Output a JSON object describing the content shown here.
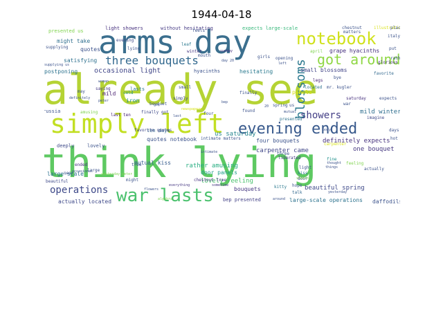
{
  "title": "1944-04-18",
  "words": [
    {
      "text": "already see",
      "size": 60,
      "color": "#b5d334"
    },
    {
      "text": "think lying",
      "size": 60,
      "color": "#5ec962"
    },
    {
      "text": "arms day",
      "size": 46,
      "color": "#3b6f8e"
    },
    {
      "text": "simply left",
      "size": 38,
      "color": "#c2df23"
    },
    {
      "text": "war lasts",
      "size": 26,
      "color": "#4ac16d"
    },
    {
      "text": "notebook",
      "size": 24,
      "color": "#d0e11c"
    },
    {
      "text": "evening ended",
      "size": 22,
      "color": "#38598c"
    },
    {
      "text": "got around",
      "size": 20,
      "color": "#8fd744"
    },
    {
      "text": "blossoms",
      "size": 18,
      "color": "#2a788e"
    },
    {
      "text": "three bouquets",
      "size": 16,
      "color": "#31688e"
    },
    {
      "text": "showers",
      "size": 14,
      "color": "#433e85"
    },
    {
      "text": "operations",
      "size": 14,
      "color": "#3e4989"
    },
    {
      "text": "occasional light",
      "size": 10,
      "color": "#404688"
    },
    {
      "text": "rather amusing",
      "size": 9,
      "color": "#27ad81"
    },
    {
      "text": "lovely feeling",
      "size": 9,
      "color": "#4ac16d"
    },
    {
      "text": "beautiful spring",
      "size": 9,
      "color": "#3e4989"
    },
    {
      "text": "carpenter came",
      "size": 9,
      "color": "#404688"
    },
    {
      "text": "definitely expects",
      "size": 9,
      "color": "#46327e"
    },
    {
      "text": "one bouquet",
      "size": 9,
      "color": "#453781"
    },
    {
      "text": "mild winter",
      "size": 9,
      "color": "#2e6e8e"
    },
    {
      "text": "mutual kiss",
      "size": 8,
      "color": "#365c8d"
    },
    {
      "text": "us saturday",
      "size": 9,
      "color": "#25848e"
    },
    {
      "text": "four bouquets",
      "size": 8,
      "color": "#3b528b"
    },
    {
      "text": "door panels",
      "size": 8,
      "color": "#1f9e89"
    },
    {
      "text": "quotes notebook",
      "size": 8,
      "color": "#3b528b"
    },
    {
      "text": "large-scale operations",
      "size": 8,
      "color": "#2c728e"
    },
    {
      "text": "actually located",
      "size": 8,
      "color": "#3e4989"
    },
    {
      "text": "daffodils",
      "size": 8,
      "color": "#3b528b"
    },
    {
      "text": "bep presented",
      "size": 7,
      "color": "#424086"
    },
    {
      "text": "bouquets",
      "size": 8,
      "color": "#453781"
    },
    {
      "text": "small blossoms",
      "size": 8,
      "color": "#414487"
    },
    {
      "text": "grape hyacinths",
      "size": 8,
      "color": "#46307e"
    },
    {
      "text": "satisfying",
      "size": 8,
      "color": "#2d708e"
    },
    {
      "text": "postponing",
      "size": 8,
      "color": "#2c728e"
    },
    {
      "text": "might take",
      "size": 8,
      "color": "#2e6e8e"
    },
    {
      "text": "hesitating",
      "size": 8,
      "color": "#29798e"
    },
    {
      "text": "hyacinths",
      "size": 7,
      "color": "#3b528b"
    },
    {
      "text": "quotes",
      "size": 8,
      "color": "#3b528b"
    },
    {
      "text": "large-scale",
      "size": 8,
      "color": "#2c728e"
    },
    {
      "text": "presented us",
      "size": 7,
      "color": "#7fd34e"
    },
    {
      "text": "light showers",
      "size": 7,
      "color": "#46307e"
    },
    {
      "text": "without hesitating",
      "size": 7,
      "color": "#443983"
    },
    {
      "text": "expects large-scale",
      "size": 7,
      "color": "#35b779"
    },
    {
      "text": "panels",
      "size": 8,
      "color": "#d8e219"
    },
    {
      "text": "ten days",
      "size": 7,
      "color": "#31688e"
    },
    {
      "text": "iron",
      "size": 8,
      "color": "#21918c"
    },
    {
      "text": "finally got",
      "size": 6,
      "color": "#3e4989"
    },
    {
      "text": "last ten",
      "size": 6,
      "color": "#482173"
    },
    {
      "text": "mild",
      "size": 8,
      "color": "#481f70"
    },
    {
      "text": "chestnut tree",
      "size": 6,
      "color": "#46337f"
    },
    {
      "text": "intimate matters",
      "size": 6,
      "color": "#3b528b"
    },
    {
      "text": "favorite quotes",
      "size": 6,
      "color": "#3f4788"
    },
    {
      "text": "lasts",
      "size": 7,
      "color": "#2a788e"
    },
    {
      "text": "lovely",
      "size": 7,
      "color": "#3b528b"
    },
    {
      "text": "deeply",
      "size": 7,
      "color": "#3e4a89"
    },
    {
      "text": "russia",
      "size": 7,
      "color": "#3b528b"
    },
    {
      "text": "amusing",
      "size": 6,
      "color": "#7fd34e"
    },
    {
      "text": "saying",
      "size": 6,
      "color": "#453781"
    },
    {
      "text": "simply",
      "size": 6,
      "color": "#3e4989"
    },
    {
      "text": "small",
      "size": 6,
      "color": "#3b528b"
    },
    {
      "text": "located",
      "size": 6,
      "color": "#2c728e"
    },
    {
      "text": "legs",
      "size": 6,
      "color": "#482475"
    },
    {
      "text": "favorite",
      "size": 6,
      "color": "#31688e"
    },
    {
      "text": "saturday",
      "size": 6,
      "color": "#46307e"
    },
    {
      "text": "imagine",
      "size": 6,
      "color": "#3e4989"
    },
    {
      "text": "presented",
      "size": 6,
      "color": "#2c728e"
    },
    {
      "text": "mutual",
      "size": 5,
      "color": "#3b528b"
    },
    {
      "text": "light",
      "size": 6,
      "color": "#3b528b"
    },
    {
      "text": "kiss",
      "size": 6,
      "color": "#2a788e"
    },
    {
      "text": "door",
      "size": 6,
      "color": "#3e4989"
    },
    {
      "text": "fine",
      "size": 6,
      "color": "#21918c"
    },
    {
      "text": "hope",
      "size": 6,
      "color": "#3b528b"
    },
    {
      "text": "talk",
      "size": 6,
      "color": "#31688e"
    },
    {
      "text": "kitty",
      "size": 6,
      "color": "#2a788e"
    },
    {
      "text": "sometime",
      "size": 5,
      "color": "#453781"
    },
    {
      "text": "tree",
      "size": 6,
      "color": "#3b528b"
    },
    {
      "text": "beautiful",
      "size": 6,
      "color": "#3e4989"
    },
    {
      "text": "near",
      "size": 6,
      "color": "#3b528b"
    },
    {
      "text": "ended",
      "size": 6,
      "color": "#46307e"
    },
    {
      "text": "bouquet",
      "size": 6,
      "color": "#3b528b"
    },
    {
      "text": "cold",
      "size": 6,
      "color": "#21918c"
    },
    {
      "text": "woman",
      "size": 5,
      "color": "#3b528b"
    },
    {
      "text": "may",
      "size": 6,
      "color": "#3b528b"
    },
    {
      "text": "feels",
      "size": 6,
      "color": "#3b528b"
    },
    {
      "text": "mouth",
      "size": 6,
      "color": "#3b528b"
    },
    {
      "text": "leaf",
      "size": 6,
      "color": "#2a788e"
    },
    {
      "text": "winter",
      "size": 6,
      "color": "#453781"
    },
    {
      "text": "girls",
      "size": 6,
      "color": "#3b528b"
    },
    {
      "text": "evening",
      "size": 6,
      "color": "#3e4989"
    },
    {
      "text": "lying",
      "size": 6,
      "color": "#3b528b"
    },
    {
      "text": "sunday",
      "size": 5,
      "color": "#46307e"
    },
    {
      "text": "april",
      "size": 6,
      "color": "#7fd34e"
    },
    {
      "text": "opening",
      "size": 6,
      "color": "#3b528b"
    },
    {
      "text": "bye",
      "size": 6,
      "color": "#3b528b"
    },
    {
      "text": "glorious",
      "size": 6,
      "color": "#46307e"
    },
    {
      "text": "chestnut",
      "size": 6,
      "color": "#3b528b"
    },
    {
      "text": "illustrations",
      "size": 6,
      "color": "#d8e219"
    },
    {
      "text": "place",
      "size": 6,
      "color": "#3b528b"
    },
    {
      "text": "matters",
      "size": 6,
      "color": "#3b528b"
    },
    {
      "text": "italy",
      "size": 6,
      "color": "#3b528b"
    },
    {
      "text": "put",
      "size": 6,
      "color": "#3b528b"
    },
    {
      "text": "rather",
      "size": 6,
      "color": "#3b528b"
    },
    {
      "text": "expects",
      "size": 6,
      "color": "#3b528b"
    },
    {
      "text": "days",
      "size": 6,
      "color": "#3b528b"
    },
    {
      "text": "hot",
      "size": 6,
      "color": "#3b528b"
    },
    {
      "text": "liberated",
      "size": 6,
      "color": "#453781"
    },
    {
      "text": "sheets",
      "size": 5,
      "color": "#7fd34e"
    },
    {
      "text": "things",
      "size": 5,
      "color": "#3b528b"
    },
    {
      "text": "thought",
      "size": 5,
      "color": "#3b528b"
    },
    {
      "text": "feeling",
      "size": 6,
      "color": "#7fd34e"
    },
    {
      "text": "actually",
      "size": 6,
      "color": "#3b528b"
    },
    {
      "text": "yesterday",
      "size": 5,
      "color": "#3b528b"
    },
    {
      "text": "carpenter",
      "size": 6,
      "color": "#d8e219"
    },
    {
      "text": "body",
      "size": 5,
      "color": "#3b528b"
    },
    {
      "text": "war",
      "size": 6,
      "color": "#3b528b"
    },
    {
      "text": "us",
      "size": 6,
      "color": "#3b528b"
    },
    {
      "text": "mr. kugler",
      "size": 6,
      "color": "#3b528b"
    },
    {
      "text": "finally",
      "size": 6,
      "color": "#3b528b"
    },
    {
      "text": "found",
      "size": 6,
      "color": "#3b528b"
    },
    {
      "text": "four",
      "size": 6,
      "color": "#3b528b"
    },
    {
      "text": "algebra",
      "size": 5,
      "color": "#7fd34e"
    },
    {
      "text": "flowers",
      "size": 5,
      "color": "#3b528b"
    },
    {
      "text": "everything",
      "size": 5,
      "color": "#453781"
    },
    {
      "text": "might",
      "size": 6,
      "color": "#3b528b"
    },
    {
      "text": "large",
      "size": 6,
      "color": "#3b528b"
    },
    {
      "text": "occasional",
      "size": 5,
      "color": "#3b528b"
    },
    {
      "text": "yesterday peter",
      "size": 5,
      "color": "#7fd34e"
    },
    {
      "text": "definitely",
      "size": 5,
      "color": "#3b528b"
    },
    {
      "text": "supplying",
      "size": 6,
      "color": "#3b528b"
    },
    {
      "text": "supplying us",
      "size": 5,
      "color": "#3b528b"
    },
    {
      "text": "three",
      "size": 6,
      "color": "#3b528b"
    },
    {
      "text": "spring",
      "size": 6,
      "color": "#3b528b"
    },
    {
      "text": "left",
      "size": 5,
      "color": "#3b528b"
    },
    {
      "text": "got",
      "size": 5,
      "color": "#3b528b"
    },
    {
      "text": "peter",
      "size": 5,
      "color": "#3b528b"
    },
    {
      "text": "day 20",
      "size": 5,
      "color": "#3b528b"
    },
    {
      "text": "20",
      "size": 5,
      "color": "#3b528b"
    },
    {
      "text": "around",
      "size": 5,
      "color": "#3b528b"
    },
    {
      "text": "last",
      "size": 5,
      "color": "#3b528b"
    },
    {
      "text": "bep",
      "size": 5,
      "color": "#3b528b"
    },
    {
      "text": "intimate",
      "size": 5,
      "color": "#3b528b"
    },
    {
      "text": "newspapers",
      "size": 5,
      "color": "#d8e219"
    }
  ]
}
